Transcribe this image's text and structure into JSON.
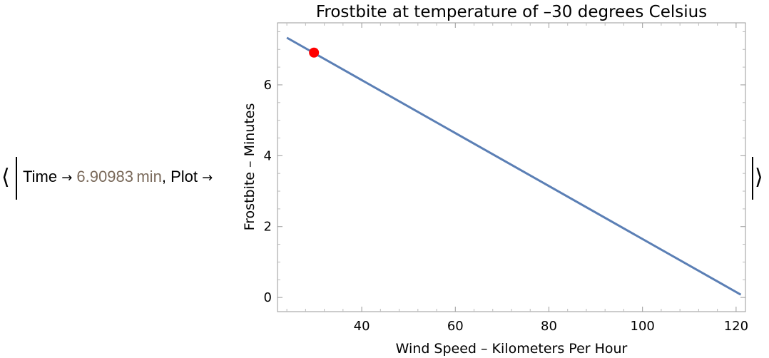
{
  "association": {
    "time_key": "Time",
    "arrow": "→",
    "time_value": "6.90983",
    "time_unit": "min",
    "separator": ",",
    "plot_key": "Plot"
  },
  "chart_data": {
    "type": "line",
    "title": "Frostbite at temperature of –30 degrees Celsius",
    "xlabel": "Wind Speed – Kilometers Per Hour",
    "ylabel": "Frostbite – Minutes",
    "xlim": [
      22,
      122
    ],
    "ylim": [
      -0.4,
      7.75
    ],
    "xticks": [
      40,
      60,
      80,
      100,
      120
    ],
    "yticks": [
      0,
      2,
      4,
      6
    ],
    "series": [
      {
        "x": [
          24,
          121
        ],
        "y": [
          7.33,
          0.08
        ],
        "color": "#5b7fb5"
      }
    ],
    "highlight_point": {
      "x": 29.8,
      "y": 6.90983,
      "color": "#ff0000"
    },
    "grid": false
  }
}
